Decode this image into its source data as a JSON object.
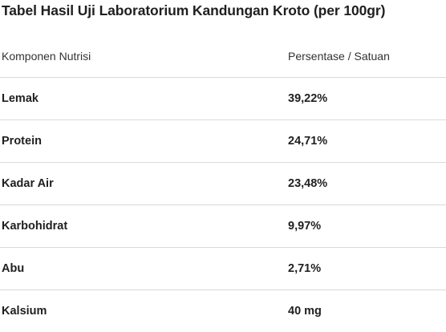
{
  "title": "Tabel Hasil Uji Laboratorium Kandungan Kroto (per 100gr)",
  "table": {
    "headers": [
      "Komponen Nutrisi",
      "Persentase / Satuan"
    ],
    "rows": [
      [
        "Lemak",
        "39,22%"
      ],
      [
        "Protein",
        "24,71%"
      ],
      [
        "Kadar Air",
        "23,48%"
      ],
      [
        "Karbohidrat",
        "9,97%"
      ],
      [
        "Abu",
        "2,71%"
      ],
      [
        "Kalsium",
        "40 mg"
      ]
    ]
  }
}
